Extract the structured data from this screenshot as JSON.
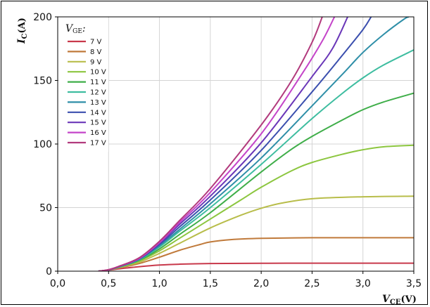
{
  "chart_data": {
    "type": "line",
    "xaxis": {
      "label_main": "V",
      "label_sub": "CE",
      "label_unit": "(V)",
      "range": [
        0,
        3.5
      ],
      "ticks": [
        0,
        0.5,
        1.0,
        1.5,
        2.0,
        2.5,
        3.0,
        3.5
      ],
      "tick_labels": [
        "0,0",
        "0,5",
        "1,0",
        "1,5",
        "2,0",
        "2,5",
        "3,0",
        "3,5"
      ]
    },
    "yaxis": {
      "label_main": "I",
      "label_sub": "C",
      "label_unit": "(A)",
      "range": [
        0,
        200
      ],
      "ticks": [
        0,
        50,
        100,
        150,
        200
      ],
      "tick_labels": [
        "0",
        "50",
        "100",
        "150",
        "200"
      ]
    },
    "grid": true,
    "legend": {
      "title_main": "V",
      "title_sub": "GE",
      "title_suffix": ":",
      "placement": "top-left"
    },
    "series": [
      {
        "name": "7 V",
        "color": "#c8394b",
        "x": [
          0.4,
          0.5,
          0.6,
          0.8,
          1.0,
          1.2,
          1.5,
          2.0,
          2.5,
          3.0,
          3.5
        ],
        "y": [
          0,
          0.8,
          1.8,
          3.5,
          4.8,
          5.5,
          6.0,
          6.2,
          6.3,
          6.3,
          6.3
        ]
      },
      {
        "name": "8 V",
        "color": "#c07a3b",
        "x": [
          0.4,
          0.5,
          0.6,
          0.8,
          1.0,
          1.2,
          1.4,
          1.5,
          1.7,
          2.0,
          2.5,
          3.0,
          3.5
        ],
        "y": [
          0,
          1.0,
          2.5,
          6.0,
          11.0,
          16.5,
          21.0,
          23.0,
          24.8,
          25.8,
          26.3,
          26.3,
          26.3
        ]
      },
      {
        "name": "9 V",
        "color": "#b8bd4a",
        "x": [
          0.4,
          0.5,
          0.6,
          0.8,
          1.0,
          1.2,
          1.5,
          1.8,
          2.0,
          2.2,
          2.5,
          3.0,
          3.5
        ],
        "y": [
          0,
          1.0,
          2.8,
          7.0,
          14.0,
          22.0,
          34.0,
          44.0,
          49.5,
          53.5,
          57.0,
          58.5,
          59.0
        ]
      },
      {
        "name": "10 V",
        "color": "#8cc63f",
        "x": [
          0.4,
          0.5,
          0.6,
          0.8,
          1.0,
          1.2,
          1.5,
          1.8,
          2.0,
          2.3,
          2.5,
          2.8,
          3.0,
          3.2,
          3.5
        ],
        "y": [
          0,
          1.0,
          3.0,
          8.0,
          16.0,
          26.0,
          41.0,
          56.0,
          66.0,
          79.0,
          85.5,
          92.0,
          95.5,
          97.8,
          99.0
        ]
      },
      {
        "name": "11 V",
        "color": "#3fae49",
        "x": [
          0.4,
          0.5,
          0.6,
          0.8,
          1.0,
          1.2,
          1.5,
          2.0,
          2.3,
          2.5,
          2.8,
          3.0,
          3.2,
          3.5
        ],
        "y": [
          0,
          1.0,
          3.2,
          8.5,
          17.5,
          29.0,
          46.0,
          78.0,
          96.0,
          106.0,
          119.0,
          127.0,
          133.0,
          140.0
        ]
      },
      {
        "name": "12 V",
        "color": "#3ebda0",
        "x": [
          0.4,
          0.5,
          0.6,
          0.8,
          1.0,
          1.2,
          1.5,
          2.0,
          2.5,
          2.8,
          3.0,
          3.2,
          3.5
        ],
        "y": [
          0,
          1.0,
          3.3,
          9.0,
          19.0,
          31.5,
          50.0,
          84.0,
          120.0,
          140.0,
          152.0,
          162.0,
          174.0
        ]
      },
      {
        "name": "13 V",
        "color": "#2f8fa8",
        "x": [
          0.4,
          0.5,
          0.6,
          0.8,
          1.0,
          1.2,
          1.5,
          2.0,
          2.5,
          2.8,
          3.0,
          3.2,
          3.4,
          3.45
        ],
        "y": [
          0,
          1.0,
          3.4,
          9.3,
          20.0,
          33.0,
          53.0,
          89.0,
          130.0,
          155.0,
          172.0,
          186.0,
          198.0,
          200.0
        ]
      },
      {
        "name": "14 V",
        "color": "#3b4fae",
        "x": [
          0.4,
          0.5,
          0.6,
          0.8,
          1.0,
          1.2,
          1.5,
          2.0,
          2.5,
          2.8,
          3.0,
          3.08
        ],
        "y": [
          0,
          1.0,
          3.5,
          9.6,
          21.0,
          35.0,
          56.0,
          95.0,
          141.0,
          170.0,
          190.0,
          200.0
        ]
      },
      {
        "name": "15 V",
        "color": "#6a37b8",
        "x": [
          0.4,
          0.5,
          0.6,
          0.8,
          1.0,
          1.2,
          1.5,
          2.0,
          2.5,
          2.7,
          2.85
        ],
        "y": [
          0,
          1.1,
          3.6,
          9.8,
          22.0,
          37.0,
          59.0,
          101.0,
          153.0,
          175.0,
          200.0
        ]
      },
      {
        "name": "16 V",
        "color": "#c444c9",
        "x": [
          0.4,
          0.5,
          0.6,
          0.8,
          1.0,
          1.2,
          1.5,
          2.0,
          2.4,
          2.6,
          2.72
        ],
        "y": [
          0,
          1.1,
          3.7,
          10.0,
          22.5,
          38.5,
          62.0,
          108.0,
          155.0,
          181.0,
          200.0
        ]
      },
      {
        "name": "17 V",
        "color": "#b23a7d",
        "x": [
          0.4,
          0.5,
          0.6,
          0.8,
          1.0,
          1.2,
          1.5,
          2.0,
          2.3,
          2.5,
          2.6
        ],
        "y": [
          0,
          1.2,
          3.8,
          10.5,
          23.5,
          40.0,
          65.0,
          115.0,
          150.0,
          180.0,
          200.0
        ]
      }
    ]
  }
}
